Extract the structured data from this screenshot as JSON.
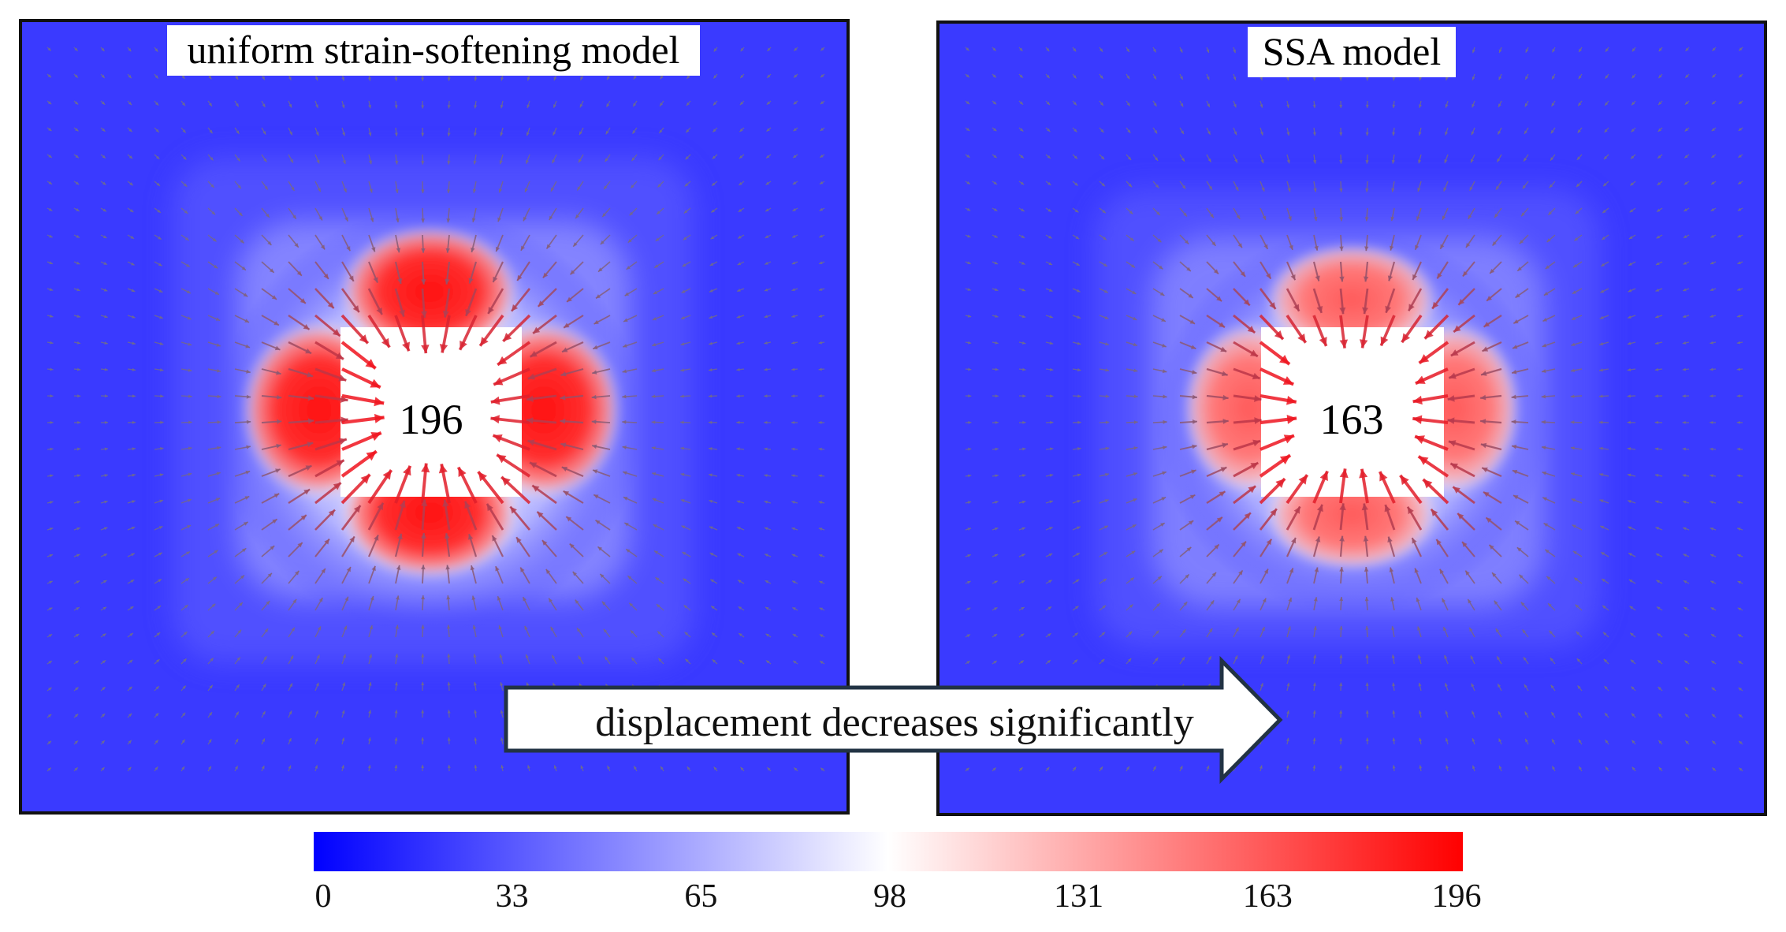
{
  "figure": {
    "colormap": {
      "low": "#0000ff",
      "mid": "#ffffff",
      "high": "#ff0000"
    },
    "panels": [
      {
        "id": "left",
        "title": "uniform strain-softening model",
        "center_value": "196",
        "max_displacement": 196
      },
      {
        "id": "right",
        "title": "SSA model",
        "center_value": "163",
        "max_displacement": 163
      }
    ],
    "colorbar": {
      "min": 0,
      "max": 196,
      "ticks": [
        "0",
        "33",
        "65",
        "98",
        "131",
        "163",
        "196"
      ]
    },
    "annotation": {
      "text": "displacement decreases significantly",
      "direction": "left-to-right"
    }
  }
}
